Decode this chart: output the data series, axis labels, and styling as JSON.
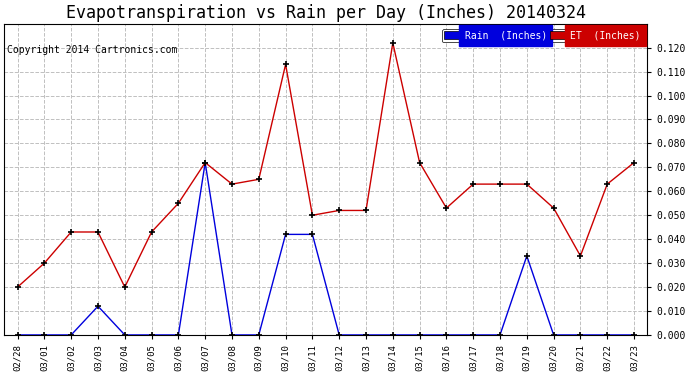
{
  "title": "Evapotranspiration vs Rain per Day (Inches) 20140324",
  "copyright": "Copyright 2014 Cartronics.com",
  "labels": [
    "02/28",
    "03/01",
    "03/02",
    "03/03",
    "03/04",
    "03/05",
    "03/06",
    "03/07",
    "03/08",
    "03/09",
    "03/10",
    "03/11",
    "03/12",
    "03/13",
    "03/14",
    "03/15",
    "03/16",
    "03/17",
    "03/18",
    "03/19",
    "03/20",
    "03/21",
    "03/22",
    "03/23"
  ],
  "rain_inches": [
    0.0,
    0.0,
    0.0,
    0.012,
    0.0,
    0.0,
    0.0,
    0.072,
    0.0,
    0.0,
    0.042,
    0.042,
    0.0,
    0.0,
    0.0,
    0.0,
    0.0,
    0.0,
    0.0,
    0.033,
    0.0,
    0.0,
    0.0,
    0.0
  ],
  "et_inches": [
    0.02,
    0.03,
    0.043,
    0.043,
    0.02,
    0.043,
    0.055,
    0.072,
    0.063,
    0.065,
    0.113,
    0.05,
    0.052,
    0.052,
    0.122,
    0.072,
    0.053,
    0.063,
    0.063,
    0.063,
    0.053,
    0.033,
    0.063,
    0.072
  ],
  "rain_color": "#0000dd",
  "et_color": "#cc0000",
  "background_color": "#ffffff",
  "grid_color": "#c0c0c0",
  "ylim": [
    0.0,
    0.13
  ],
  "yticks": [
    0.0,
    0.01,
    0.02,
    0.03,
    0.04,
    0.05,
    0.06,
    0.07,
    0.08,
    0.09,
    0.1,
    0.11,
    0.12
  ],
  "title_fontsize": 12,
  "copyright_fontsize": 7,
  "legend_rain_label": "Rain  (Inches)",
  "legend_et_label": "ET  (Inches)",
  "legend_rain_bg": "#0000dd",
  "legend_et_bg": "#cc0000",
  "figwidth": 6.9,
  "figheight": 3.75,
  "dpi": 100
}
